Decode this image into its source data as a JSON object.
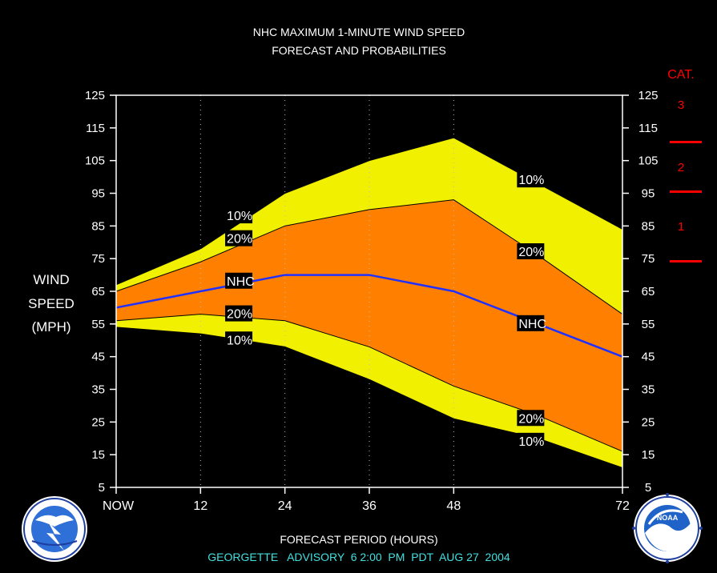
{
  "title": {
    "line1": "NHC MAXIMUM 1-MINUTE WIND SPEED",
    "line2": "FORECAST AND PROBABILITIES"
  },
  "y_axis_label": [
    "WIND",
    "SPEED",
    "(MPH)"
  ],
  "x_axis_label": "FORECAST PERIOD (HOURS)",
  "advisory_line": "GEORGETTE   ADVISORY  6 2:00  PM  PDT  AUG 27  2004",
  "category_scale": {
    "title": "CAT.",
    "labels": [
      "3",
      "2",
      "1"
    ],
    "color": "#ff0000"
  },
  "logos": {
    "left": "national-weather-service-logo",
    "right": "noaa-logo"
  },
  "colors": {
    "background": "#000000",
    "frame": "#ffffff",
    "outer_band": "#f0f000",
    "inner_band": "#ff8000",
    "nhc_line": "#2030ff",
    "advisory_text": "#40e0e0",
    "category": "#ff0000"
  },
  "chart_data": {
    "type": "area",
    "title": "NHC MAXIMUM 1-MINUTE WIND SPEED / FORECAST AND PROBABILITIES",
    "xlabel": "FORECAST PERIOD (HOURS)",
    "ylabel": "WIND SPEED (MPH)",
    "xlim": [
      0,
      72
    ],
    "ylim": [
      5,
      125
    ],
    "x_ticks": [
      0,
      12,
      24,
      36,
      48,
      72
    ],
    "x_tick_labels": [
      "NOW",
      "12",
      "24",
      "36",
      "48",
      "72"
    ],
    "y_ticks": [
      5,
      15,
      25,
      35,
      45,
      55,
      65,
      75,
      85,
      95,
      105,
      115,
      125
    ],
    "grid_x": [
      12,
      24,
      36,
      48
    ],
    "category_thresholds_mph": [
      74,
      96,
      111
    ],
    "x": [
      0,
      12,
      24,
      36,
      48,
      60,
      72
    ],
    "series": [
      {
        "name": "10%",
        "bound": "upper",
        "values": [
          67,
          78,
          95,
          105,
          112,
          98,
          84
        ]
      },
      {
        "name": "20%",
        "bound": "upper",
        "values": [
          65,
          74,
          85,
          90,
          93,
          76,
          58
        ]
      },
      {
        "name": "NHC",
        "values": [
          60,
          65,
          70,
          70,
          65,
          55,
          45
        ]
      },
      {
        "name": "20%",
        "bound": "lower",
        "values": [
          56,
          58,
          56,
          48,
          36,
          27,
          16
        ]
      },
      {
        "name": "10%",
        "bound": "lower",
        "values": [
          54,
          52,
          48,
          38,
          26,
          20,
          11
        ]
      }
    ],
    "annotations": [
      {
        "text": "10%",
        "x": 15.5,
        "y": 88
      },
      {
        "text": "20%",
        "x": 15.5,
        "y": 81
      },
      {
        "text": "NHC",
        "x": 15.5,
        "y": 68
      },
      {
        "text": "20%",
        "x": 15.5,
        "y": 58
      },
      {
        "text": "10%",
        "x": 15.5,
        "y": 50
      },
      {
        "text": "10%",
        "x": 57,
        "y": 99
      },
      {
        "text": "20%",
        "x": 57,
        "y": 77
      },
      {
        "text": "NHC",
        "x": 57,
        "y": 55
      },
      {
        "text": "20%",
        "x": 57,
        "y": 26
      },
      {
        "text": "10%",
        "x": 57,
        "y": 19
      }
    ]
  }
}
